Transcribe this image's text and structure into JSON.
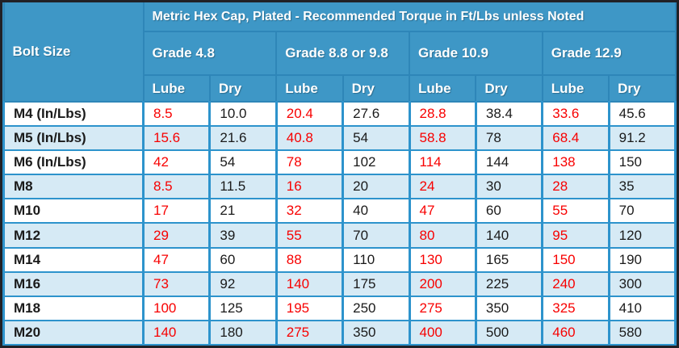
{
  "table": {
    "title": "Metric Hex Cap, Plated - Recommended Torque in Ft/Lbs unless Noted",
    "corner_header": "Bolt Size",
    "grades": [
      "Grade 4.8",
      "Grade 8.8 or 9.8",
      "Grade 10.9",
      "Grade 12.9"
    ],
    "subheaders": [
      "Lube",
      "Dry"
    ],
    "rows": [
      {
        "bolt": "M4 (In/Lbs)",
        "values": [
          "8.5",
          "10.0",
          "20.4",
          "27.6",
          "28.8",
          "38.4",
          "33.6",
          "45.6"
        ]
      },
      {
        "bolt": "M5 (In/Lbs)",
        "values": [
          "15.6",
          "21.6",
          "40.8",
          "54",
          "58.8",
          "78",
          "68.4",
          "91.2"
        ]
      },
      {
        "bolt": "M6 (In/Lbs)",
        "values": [
          "42",
          "54",
          "78",
          "102",
          "114",
          "144",
          "138",
          "150"
        ]
      },
      {
        "bolt": "M8",
        "values": [
          "8.5",
          "11.5",
          "16",
          "20",
          "24",
          "30",
          "28",
          "35"
        ]
      },
      {
        "bolt": "M10",
        "values": [
          "17",
          "21",
          "32",
          "40",
          "47",
          "60",
          "55",
          "70"
        ]
      },
      {
        "bolt": "M12",
        "values": [
          "29",
          "39",
          "55",
          "70",
          "80",
          "140",
          "95",
          "120"
        ]
      },
      {
        "bolt": "M14",
        "values": [
          "47",
          "60",
          "88",
          "110",
          "130",
          "165",
          "150",
          "190"
        ]
      },
      {
        "bolt": "M16",
        "values": [
          "73",
          "92",
          "140",
          "175",
          "200",
          "225",
          "240",
          "300"
        ]
      },
      {
        "bolt": "M18",
        "values": [
          "100",
          "125",
          "195",
          "250",
          "275",
          "350",
          "325",
          "410"
        ]
      },
      {
        "bolt": "M20",
        "values": [
          "140",
          "180",
          "275",
          "350",
          "400",
          "500",
          "460",
          "580"
        ]
      }
    ],
    "colors": {
      "header_bg": "#3E97C6",
      "header_border": "#2E86B8",
      "row_bg": "#FFFFFF",
      "row_alt_bg": "#D6EAF5",
      "body_border": "#2D93CC",
      "lube_text": "#F80000",
      "dry_text": "#1A1A1A",
      "outer_border": "#212126"
    }
  }
}
